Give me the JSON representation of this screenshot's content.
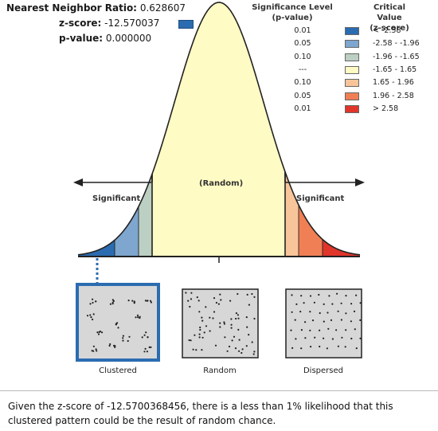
{
  "stats": {
    "ratio_label": "Nearest Neighbor Ratio:",
    "ratio_value": "0.628607",
    "z_label": "z-score:",
    "z_value": "-12.570037",
    "p_label": "p-value:",
    "p_value": "0.000000",
    "z_marker_color": "#2b6cb0"
  },
  "legend": {
    "sig_header_line1": "Significance Level",
    "sig_header_line2": "(p-value)",
    "crit_header_line1": "Critical Value",
    "crit_header_line2": "(z-score)",
    "rows": [
      {
        "sig": "0.01",
        "crit": "< -2.58",
        "color": "#2b6cb0"
      },
      {
        "sig": "0.05",
        "crit": "-2.58 - -1.96",
        "color": "#7ea6cf"
      },
      {
        "sig": "0.10",
        "crit": "-1.96 - -1.65",
        "color": "#bccfc3"
      },
      {
        "sig": "---",
        "crit": "-1.65 - 1.65",
        "color": "#fffbc4"
      },
      {
        "sig": "0.10",
        "crit": "1.65 - 1.96",
        "color": "#f8c59a"
      },
      {
        "sig": "0.05",
        "crit": "1.96 - 2.58",
        "color": "#f07f55"
      },
      {
        "sig": "0.01",
        "crit": "> 2.58",
        "color": "#e0352b"
      }
    ]
  },
  "curve": {
    "center_label": "(Random)",
    "left_label": "Significant",
    "right_label": "Significant",
    "center_color": "#fffbc4"
  },
  "panels": [
    {
      "label": "Clustered",
      "selected": true
    },
    {
      "label": "Random",
      "selected": false
    },
    {
      "label": "Dispersed",
      "selected": false
    }
  ],
  "caption": "Given the z-score of -12.5700368456, there is a less than 1% likelihood that this clustered pattern could be the result of random chance."
}
